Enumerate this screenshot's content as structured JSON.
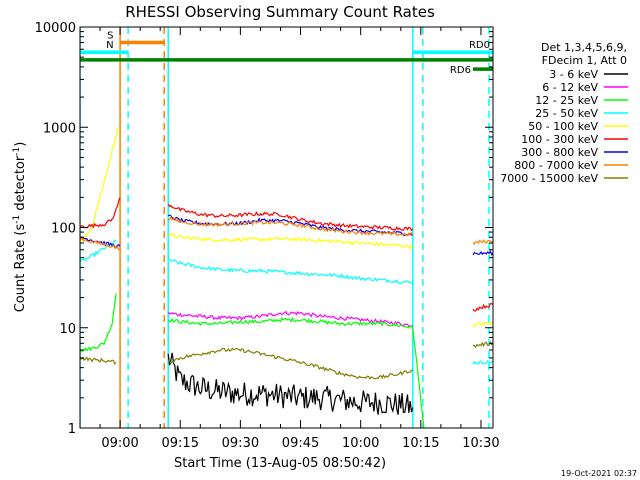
{
  "chart_data": {
    "type": "line",
    "title": "RHESSI Observing Summary Count Rates",
    "xlabel": "Start Time (13-Aug-05 08:50:42)",
    "ylabel_main": "Count Rate (s",
    "ylabel_sup": "-1",
    "ylabel_mid": " detector",
    "ylabel_end": ")",
    "timestamp": "19-Oct-2021 02:37",
    "x_range_minutes_after_0850": [
      0,
      103
    ],
    "y_scale": "log",
    "ylim": [
      1,
      10000
    ],
    "x_ticks": [
      {
        "label": "09:00",
        "t": 10
      },
      {
        "label": "09:15",
        "t": 25
      },
      {
        "label": "09:30",
        "t": 40
      },
      {
        "label": "09:45",
        "t": 55
      },
      {
        "label": "10:00",
        "t": 70
      },
      {
        "label": "10:15",
        "t": 85
      },
      {
        "label": "10:30",
        "t": 100
      }
    ],
    "y_ticks": [
      {
        "label": "1",
        "v": 1
      },
      {
        "label": "10",
        "v": 10
      },
      {
        "label": "100",
        "v": 100
      },
      {
        "label": "1000",
        "v": 1000
      },
      {
        "label": "10000",
        "v": 10000
      }
    ],
    "legend": {
      "header": [
        "Det 1,3,4,5,6,9,",
        "FDecim 1, Att 0"
      ],
      "placement": "right"
    },
    "series": [
      {
        "name": "3 - 6 keV",
        "color": "#000000",
        "segments": [
          {
            "x": [
              22,
              25,
              30,
              35,
              40,
              45,
              50,
              55,
              60,
              65,
              70,
              75,
              80,
              83
            ],
            "y": [
              5,
              3,
              2.5,
              2.3,
              2.2,
              2.2,
              2.1,
              2.0,
              2.0,
              1.9,
              1.8,
              1.8,
              1.7,
              1.6
            ]
          }
        ]
      },
      {
        "name": "6 - 12 keV",
        "color": "#ff00ff",
        "segments": [
          {
            "x": [
              22,
              25,
              30,
              35,
              40,
              45,
              50,
              55,
              60,
              65,
              70,
              75,
              80,
              83
            ],
            "y": [
              14,
              13.5,
              13,
              12.5,
              12.5,
              13,
              14,
              14,
              13,
              12.5,
              12,
              11.5,
              11,
              10.5
            ]
          }
        ]
      },
      {
        "name": "12 - 25 keV",
        "color": "#00ff00",
        "segments": [
          {
            "x": [
              0,
              3,
              6,
              8,
              9
            ],
            "y": [
              6,
              6.2,
              7,
              11,
              22
            ]
          },
          {
            "x": [
              22,
              25,
              30,
              35,
              40,
              45,
              50,
              55,
              60,
              65,
              70,
              75,
              80,
              83,
              85.8
            ],
            "y": [
              12,
              11.5,
              11,
              11,
              11.5,
              11.5,
              12,
              12,
              11.5,
              11,
              11,
              11,
              10.5,
              10,
              1
            ]
          }
        ]
      },
      {
        "name": "25 - 50 keV",
        "color": "#00ffff",
        "segments": [
          {
            "x": [
              0,
              3,
              6,
              8,
              9
            ],
            "y": [
              45,
              52,
              62,
              70,
              75
            ]
          },
          {
            "x": [
              22,
              25,
              30,
              35,
              40,
              45,
              50,
              55,
              60,
              65,
              70,
              75,
              80,
              83
            ],
            "y": [
              48,
              44,
              40,
              38,
              37,
              37,
              36,
              35,
              34,
              33,
              31,
              30,
              29,
              28
            ]
          },
          {
            "x": [
              98,
              100,
              103
            ],
            "y": [
              4.5,
              4.5,
              4.6
            ]
          }
        ]
      },
      {
        "name": "50 - 100 keV",
        "color": "#ffff00",
        "segments": [
          {
            "x": [
              0,
              3,
              5,
              7,
              8.5,
              9.5
            ],
            "y": [
              70,
              100,
              200,
              400,
              700,
              1000
            ]
          },
          {
            "x": [
              22,
              25,
              30,
              35,
              40,
              45,
              50,
              55,
              60,
              65,
              70,
              75,
              80,
              83
            ],
            "y": [
              85,
              80,
              77,
              75,
              76,
              76,
              77,
              76,
              74,
              72,
              70,
              68,
              66,
              64
            ]
          },
          {
            "x": [
              98,
              100,
              103
            ],
            "y": [
              10.5,
              11,
              11
            ]
          }
        ]
      },
      {
        "name": "100 - 300 keV",
        "color": "#ff0000",
        "segments": [
          {
            "x": [
              0,
              3,
              6,
              8,
              9,
              10
            ],
            "y": [
              102,
              104,
              108,
              120,
              150,
              200
            ]
          },
          {
            "x": [
              22,
              25,
              30,
              35,
              40,
              45,
              50,
              55,
              60,
              65,
              70,
              75,
              80,
              83
            ],
            "y": [
              170,
              150,
              135,
              130,
              133,
              137,
              135,
              120,
              110,
              105,
              102,
              100,
              98,
              97
            ]
          },
          {
            "x": [
              98,
              100,
              103
            ],
            "y": [
              15,
              16,
              17
            ]
          }
        ]
      },
      {
        "name": "300 - 800 keV",
        "color": "#0000ff",
        "segments": [
          {
            "x": [
              0,
              3,
              6,
              8,
              9,
              10
            ],
            "y": [
              80,
              75,
              70,
              67,
              65,
              65
            ]
          },
          {
            "x": [
              22,
              25,
              30,
              35,
              40,
              45,
              50,
              55,
              60,
              65,
              70,
              75,
              80,
              83
            ],
            "y": [
              130,
              118,
              110,
              108,
              110,
              118,
              117,
              110,
              100,
              95,
              92,
              90,
              88,
              85
            ]
          },
          {
            "x": [
              98,
              100,
              103
            ],
            "y": [
              55,
              55,
              56
            ]
          }
        ]
      },
      {
        "name": "800 - 7000 keV",
        "color": "#ff8000",
        "segments": [
          {
            "x": [
              0,
              3,
              6,
              8,
              9,
              10
            ],
            "y": [
              78,
              72,
              68,
              65,
              63,
              60
            ]
          },
          {
            "x": [
              22,
              25,
              30,
              35,
              40,
              45,
              50,
              55,
              60,
              65,
              70,
              75,
              80,
              83
            ],
            "y": [
              125,
              115,
              108,
              107,
              110,
              112,
              111,
              105,
              97,
              92,
              89,
              87,
              86,
              85
            ]
          },
          {
            "x": [
              98,
              100,
              103
            ],
            "y": [
              70,
              72,
              73
            ]
          }
        ]
      },
      {
        "name": "7000 - 15000 keV",
        "color": "#808000",
        "segments": [
          {
            "x": [
              0,
              3,
              6,
              8,
              9
            ],
            "y": [
              5,
              4.8,
              4.7,
              4.6,
              4.5
            ]
          },
          {
            "x": [
              22,
              25,
              30,
              35,
              40,
              45,
              50,
              55,
              60,
              65,
              70,
              75,
              80,
              83
            ],
            "y": [
              4.5,
              5,
              5.5,
              6,
              6,
              5.5,
              5,
              4.5,
              4,
              3.5,
              3.2,
              3.2,
              3.5,
              3.8
            ]
          },
          {
            "x": [
              98,
              100,
              103
            ],
            "y": [
              6.5,
              6.8,
              7
            ]
          }
        ]
      }
    ],
    "markers": {
      "bars": [
        {
          "label": "S",
          "color": "#ff8000",
          "x0": 10,
          "x1": 21,
          "y": 7000
        },
        {
          "label": "N",
          "color": "#00ffff",
          "x0": 0,
          "x1": 12,
          "y": 5600
        },
        {
          "label": "RD0",
          "color": "#00ffff",
          "x0": 83,
          "x1": 103,
          "y": 5600
        },
        {
          "label": "",
          "color": "#008000",
          "x0": 0,
          "x1": 103,
          "y": 4700
        },
        {
          "label": "RD6",
          "color": "#008000",
          "x0": 98,
          "x1": 103,
          "y": 3800
        }
      ],
      "vlines": [
        {
          "x": 0,
          "color": "#00ffff",
          "style": "solid"
        },
        {
          "x": 10,
          "color": "#ff8000",
          "style": "solid"
        },
        {
          "x": 12,
          "color": "#00ffff",
          "style": "dashed"
        },
        {
          "x": 21,
          "color": "#ff8000",
          "style": "dashed"
        },
        {
          "x": 22,
          "color": "#00ffff",
          "style": "solid"
        },
        {
          "x": 83,
          "color": "#00ffff",
          "style": "solid"
        },
        {
          "x": 85.5,
          "color": "#00ffff",
          "style": "dashed"
        },
        {
          "x": 102,
          "color": "#00ffff",
          "style": "dashed"
        }
      ]
    }
  }
}
